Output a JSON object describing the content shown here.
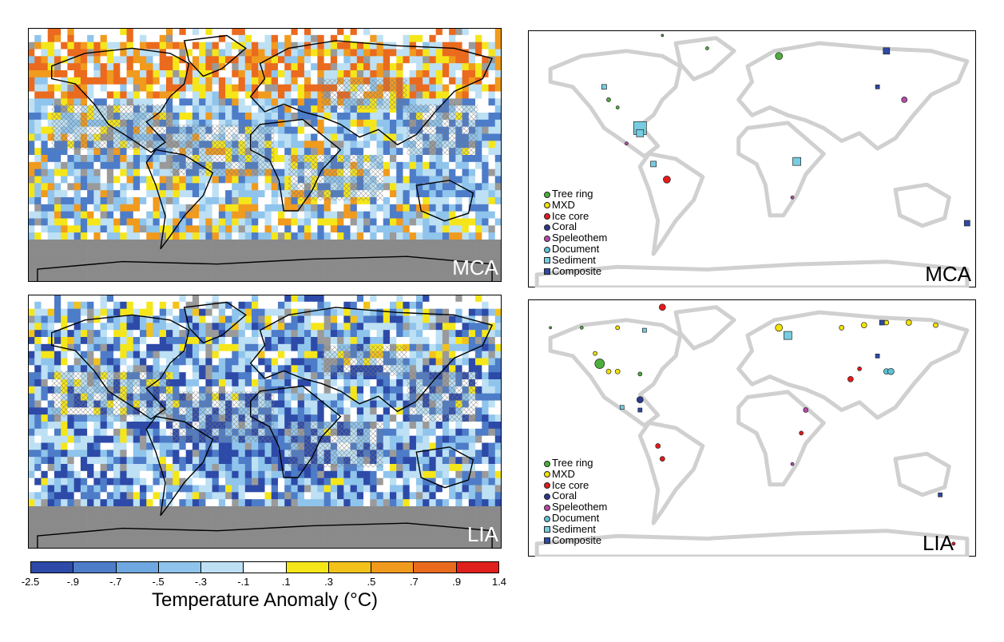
{
  "maps": {
    "mca_temperature": {
      "label": "MCA"
    },
    "lia_temperature": {
      "label": "LIA"
    },
    "mca_proxies": {
      "label": "MCA"
    },
    "lia_proxies": {
      "label": "LIA"
    }
  },
  "legend": {
    "items": [
      {
        "label": "Tree ring",
        "shape": "circle",
        "color": "#4caf3a"
      },
      {
        "label": "MXD",
        "shape": "circle",
        "color": "#f2e200"
      },
      {
        "label": "Ice core",
        "shape": "circle",
        "color": "#e41a1c"
      },
      {
        "label": "Coral",
        "shape": "circle",
        "color": "#2b3a8c"
      },
      {
        "label": "Speleothem",
        "shape": "circle",
        "color": "#b84aa8"
      },
      {
        "label": "Document",
        "shape": "circle",
        "color": "#5ec2d6"
      },
      {
        "label": "Sediment",
        "shape": "square",
        "color": "#76cde0"
      },
      {
        "label": "Composite",
        "shape": "square",
        "color": "#2e4aa6"
      }
    ]
  },
  "colorbar": {
    "title": "Temperature Anomaly (°C)",
    "ticks": [
      "-2.5",
      "-.9",
      "-.7",
      "-.5",
      "-.3",
      "-.1",
      ".1",
      ".3",
      ".5",
      ".7",
      ".9",
      "1.4"
    ],
    "colors": [
      "#2d4aa8",
      "#4d7cc8",
      "#6fa8e0",
      "#8fc4ec",
      "#bde0f4",
      "#ffffff",
      "#f5e61a",
      "#f3c21a",
      "#f09a1e",
      "#ea6a1e",
      "#e0201c",
      "#8b1214"
    ]
  }
}
